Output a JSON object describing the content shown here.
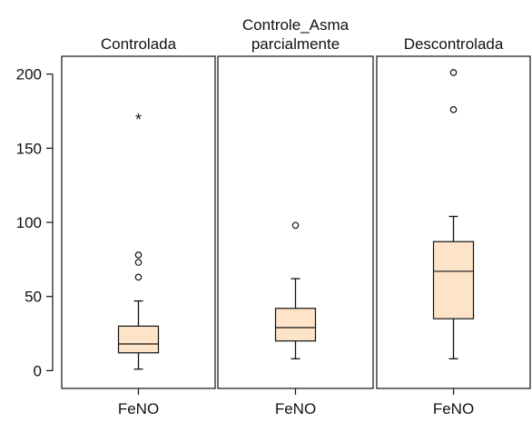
{
  "chart_data": {
    "type": "boxplot",
    "panels": [
      {
        "title_lines": [
          "Controlada"
        ],
        "x_label": "FeNO",
        "box": {
          "whisker_low": 1,
          "q1": 12,
          "median": 18,
          "q3": 30,
          "whisker_high": 47
        },
        "outliers": [
          {
            "value": 63,
            "marker": "circle"
          },
          {
            "value": 73,
            "marker": "circle"
          },
          {
            "value": 78,
            "marker": "circle"
          },
          {
            "value": 171,
            "marker": "star"
          }
        ]
      },
      {
        "title_lines": [
          "Controle_Asma",
          "parcialmente"
        ],
        "x_label": "FeNO",
        "box": {
          "whisker_low": 8,
          "q1": 20,
          "median": 29,
          "q3": 42,
          "whisker_high": 62
        },
        "outliers": [
          {
            "value": 98,
            "marker": "circle"
          }
        ]
      },
      {
        "title_lines": [
          "Descontrolada"
        ],
        "x_label": "FeNO",
        "box": {
          "whisker_low": 8,
          "q1": 35,
          "median": 67,
          "q3": 87,
          "whisker_high": 104
        },
        "outliers": [
          {
            "value": 176,
            "marker": "circle"
          },
          {
            "value": 201,
            "marker": "circle"
          }
        ]
      }
    ],
    "y_axis": {
      "min": -12,
      "max": 212,
      "ticks": [
        0,
        50,
        100,
        150,
        200
      ]
    },
    "colors": {
      "box_fill": "#fde3c8",
      "line": "#111111"
    }
  }
}
